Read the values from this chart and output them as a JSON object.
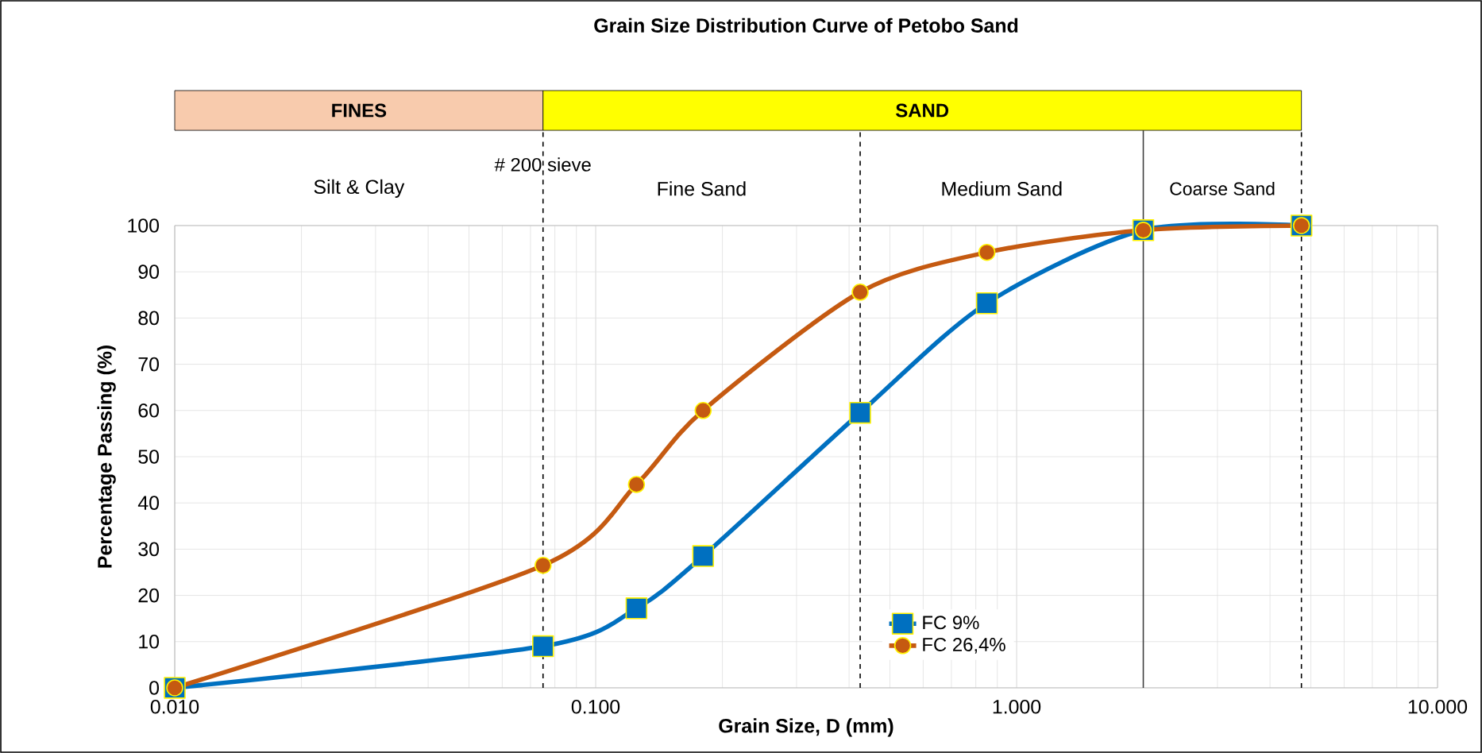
{
  "chart_data": {
    "type": "line",
    "title": "Grain Size Distribution Curve of Petobo Sand",
    "xlabel": "Grain Size, D (mm)",
    "ylabel": "Percentage Passing (%)",
    "log": "x",
    "xlim": [
      0.01,
      10
    ],
    "ylim": [
      0,
      100
    ],
    "xticks": [
      {
        "value": 0.01,
        "label": "0.010"
      },
      {
        "value": 0.1,
        "label": "0.100"
      },
      {
        "value": 1,
        "label": "1.000"
      },
      {
        "value": 10,
        "label": "10.000"
      }
    ],
    "yticks": [
      0,
      10,
      20,
      30,
      40,
      50,
      60,
      70,
      80,
      90,
      100
    ],
    "grid": true,
    "legend": "bottom right",
    "line_style": "solid",
    "x": [
      0.01,
      0.075,
      0.125,
      0.18,
      0.425,
      0.85,
      2.0,
      4.75
    ],
    "series": [
      {
        "name": "FC 9%",
        "color": "#0070c0",
        "marker": "square",
        "values": [
          0,
          9,
          17.2,
          28.5,
          59.5,
          83.2,
          99,
          100
        ]
      },
      {
        "name": "FC 26,4%",
        "color": "#c55a11",
        "marker": "circle",
        "values": [
          0,
          26.5,
          44,
          60,
          85.6,
          94.2,
          99,
          100
        ]
      }
    ],
    "ref_lines": [
      {
        "axis": "x",
        "value": 0.075,
        "label": "# 200 sieve",
        "line_style": "dashed",
        "color": "#000000"
      },
      {
        "axis": "x",
        "value": 0.425,
        "line_style": "dashed",
        "color": "#000000"
      },
      {
        "axis": "x",
        "value": 2.0,
        "line_style": "solid",
        "color": "#404040"
      },
      {
        "axis": "x",
        "value": 4.75,
        "line_style": "dashed",
        "color": "#000000"
      }
    ],
    "annotations": [
      "FINES",
      "SAND",
      "Silt & Clay",
      "Fine Sand",
      "Medium Sand",
      "Coarse Sand"
    ]
  }
}
